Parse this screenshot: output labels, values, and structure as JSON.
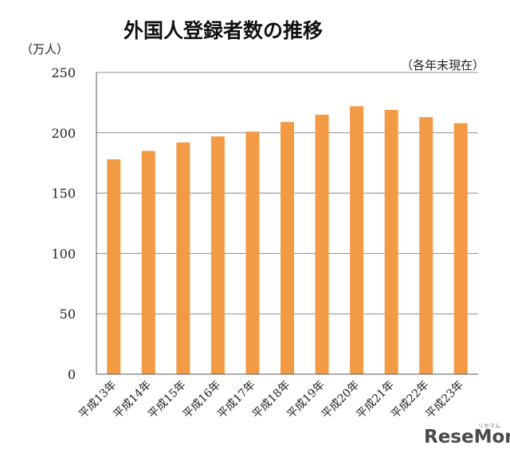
{
  "chart_data": {
    "type": "bar",
    "title": "外国人登録者数の推移",
    "ylabel": "（万人）",
    "note": "（各年末現在）",
    "categories": [
      "平成13年",
      "平成14年",
      "平成15年",
      "平成16年",
      "平成17年",
      "平成18年",
      "平成19年",
      "平成20年",
      "平成21年",
      "平成22年",
      "平成23年"
    ],
    "values": [
      178,
      185,
      192,
      197,
      201,
      209,
      215,
      222,
      219,
      213,
      208
    ],
    "ylim": [
      0,
      250
    ],
    "yticks": [
      0,
      50,
      100,
      150,
      200,
      250
    ],
    "grid": true,
    "bar_color": "#F39A45"
  },
  "watermark": {
    "logo": "ReseMom",
    "sub": "リセマム"
  }
}
